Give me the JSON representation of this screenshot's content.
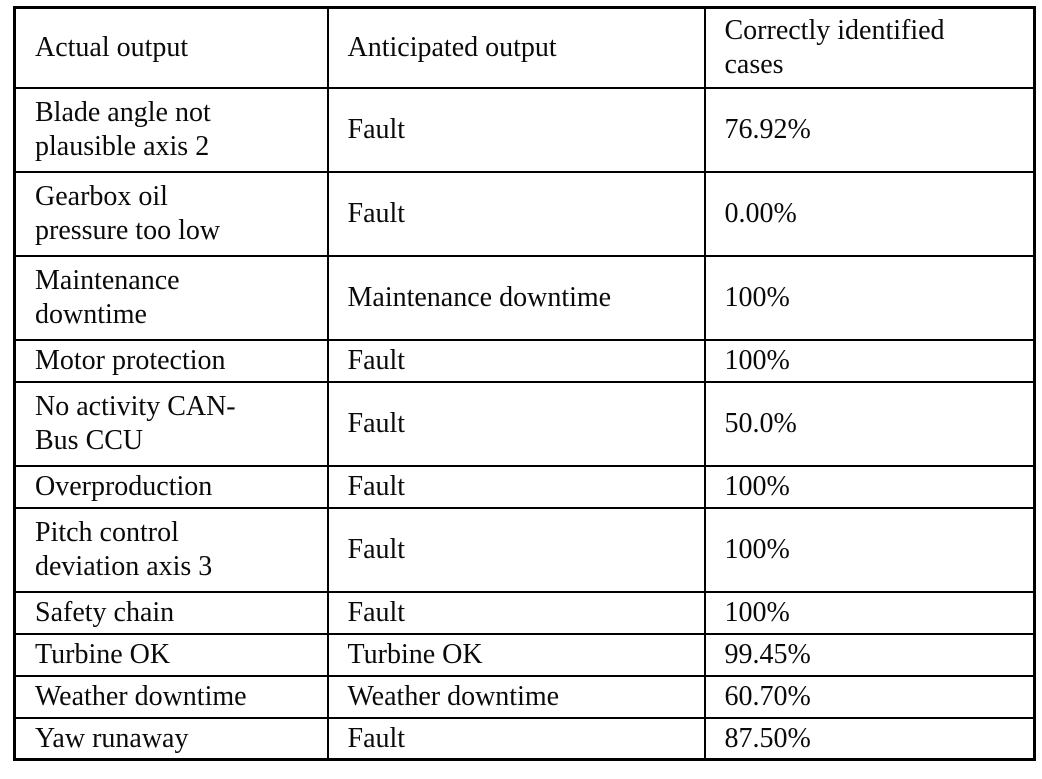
{
  "table": {
    "columns": [
      "Actual output",
      "Anticipated output",
      "Correctly identified\ncases"
    ],
    "rows": [
      {
        "actual": "Blade angle not\nplausible axis 2",
        "anticipated": "Fault",
        "correct": "76.92%"
      },
      {
        "actual": "Gearbox oil\npressure too low",
        "anticipated": "Fault",
        "correct": "0.00%"
      },
      {
        "actual": "Maintenance\ndowntime",
        "anticipated": "Maintenance downtime",
        "correct": "100%"
      },
      {
        "actual": "Motor protection",
        "anticipated": "Fault",
        "correct": "100%"
      },
      {
        "actual": "No activity CAN-\nBus CCU",
        "anticipated": "Fault",
        "correct": "50.0%"
      },
      {
        "actual": "Overproduction",
        "anticipated": "Fault",
        "correct": "100%"
      },
      {
        "actual": "Pitch control\ndeviation axis 3",
        "anticipated": "Fault",
        "correct": "100%"
      },
      {
        "actual": "Safety chain",
        "anticipated": "Fault",
        "correct": "100%"
      },
      {
        "actual": "Turbine OK",
        "anticipated": "Turbine OK",
        "correct": "99.45%"
      },
      {
        "actual": "Weather downtime",
        "anticipated": "Weather downtime",
        "correct": "60.70%"
      },
      {
        "actual": "Yaw runaway",
        "anticipated": "Fault",
        "correct": "87.50%"
      }
    ]
  }
}
